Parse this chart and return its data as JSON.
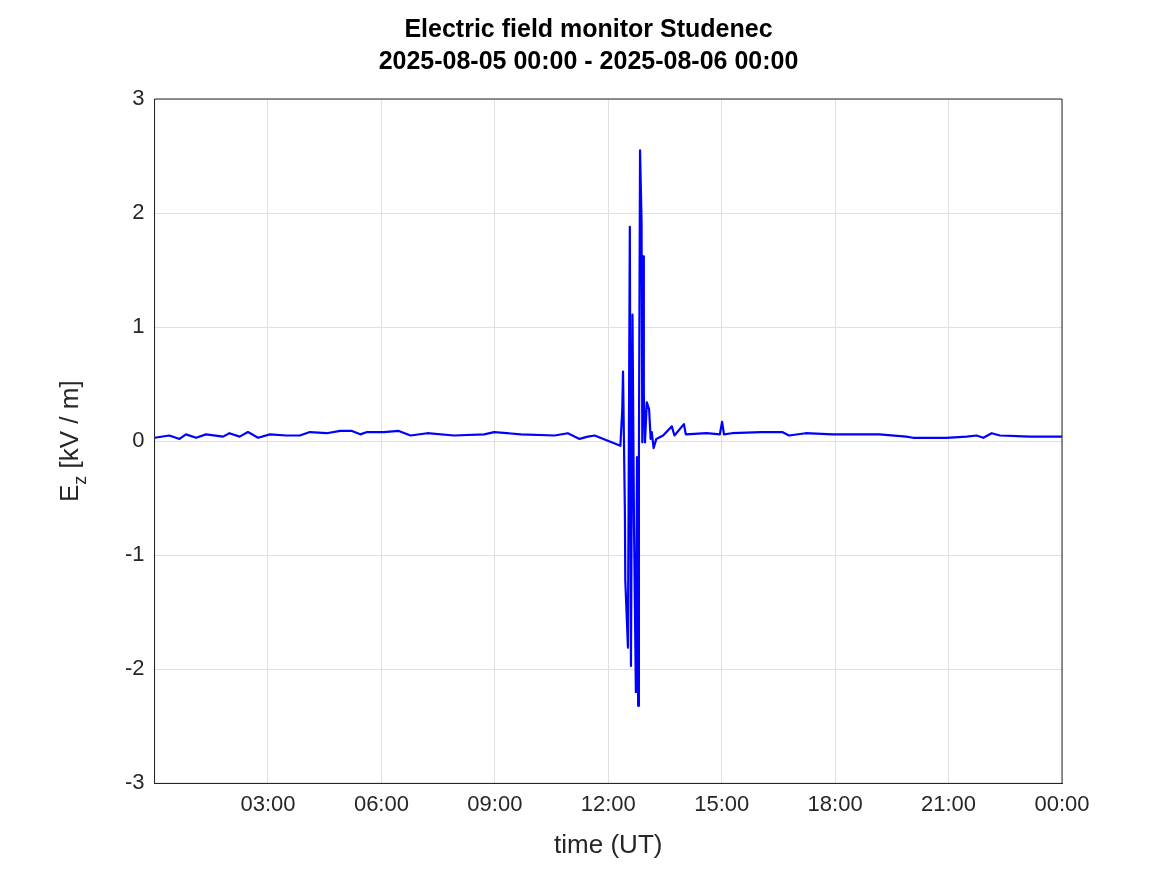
{
  "chart_data": {
    "type": "line",
    "title": "Electric field monitor Studenec",
    "subtitle": "2025-08-05 00:00 - 2025-08-06 00:00",
    "xlabel": "time (UT)",
    "ylabel": "E$_{z}$ [kV / m]",
    "xlim": [
      0,
      24
    ],
    "xticks": [
      {
        "value": 3,
        "label": "03:00"
      },
      {
        "value": 6,
        "label": "06:00"
      },
      {
        "value": 9,
        "label": "09:00"
      },
      {
        "value": 12,
        "label": "12:00"
      },
      {
        "value": 15,
        "label": "15:00"
      },
      {
        "value": 18,
        "label": "18:00"
      },
      {
        "value": 21,
        "label": "21:00"
      },
      {
        "value": 24,
        "label": "00:00"
      }
    ],
    "ylim": [
      -3,
      3
    ],
    "yticks": [
      -3,
      -2,
      -1,
      0,
      1,
      2,
      3
    ],
    "grid": true,
    "legend": false,
    "marker": "none",
    "line_style": "solid",
    "series": [
      {
        "color": "#0000ff",
        "x": [
          0,
          0.39,
          0.66,
          0.83,
          1.1,
          1.36,
          1.81,
          1.98,
          2.25,
          2.47,
          2.74,
          3.05,
          3.49,
          3.84,
          4.11,
          4.55,
          4.91,
          5.22,
          5.44,
          5.62,
          6.06,
          6.46,
          6.77,
          7.21,
          7.92,
          8.72,
          8.98,
          9.69,
          10.58,
          10.93,
          11.24,
          11.46,
          11.64,
          12.32,
          12.37,
          12.39,
          12.44,
          12.45,
          12.52,
          12.57,
          12.6,
          12.64,
          12.68,
          12.73,
          12.76,
          12.79,
          12.81,
          12.84,
          12.88,
          12.9,
          12.92,
          12.94,
          12.97,
          13.02,
          13.08,
          13.12,
          13.15,
          13.2,
          13.27,
          13.45,
          13.68,
          13.75,
          14.0,
          14.05,
          14.6,
          14.95,
          15.01,
          15.06,
          15.27,
          16.04,
          16.6,
          16.78,
          17.22,
          17.93,
          18.46,
          19.17,
          19.88,
          20.06,
          20.94,
          21.48,
          21.74,
          21.92,
          22.14,
          22.36,
          23.16,
          24.0
        ],
        "values": [
          0.03,
          0.05,
          0.02,
          0.06,
          0.03,
          0.06,
          0.04,
          0.07,
          0.04,
          0.08,
          0.03,
          0.06,
          0.05,
          0.05,
          0.08,
          0.07,
          0.09,
          0.09,
          0.06,
          0.08,
          0.08,
          0.09,
          0.05,
          0.07,
          0.05,
          0.06,
          0.08,
          0.06,
          0.05,
          0.07,
          0.02,
          0.04,
          0.05,
          -0.04,
          0.28,
          0.61,
          -0.64,
          -1.22,
          -1.81,
          1.88,
          -1.97,
          1.11,
          -0.73,
          -2.2,
          -0.14,
          -2.32,
          -0.14,
          2.55,
          1.93,
          -0.01,
          1.62,
          0.41,
          -0.01,
          0.34,
          0.28,
          0.02,
          0.08,
          -0.06,
          0.02,
          0.05,
          0.13,
          0.05,
          0.15,
          0.06,
          0.07,
          0.06,
          0.17,
          0.06,
          0.07,
          0.08,
          0.08,
          0.05,
          0.07,
          0.06,
          0.06,
          0.06,
          0.04,
          0.03,
          0.03,
          0.04,
          0.05,
          0.03,
          0.07,
          0.05,
          0.04,
          0.04
        ]
      }
    ]
  }
}
